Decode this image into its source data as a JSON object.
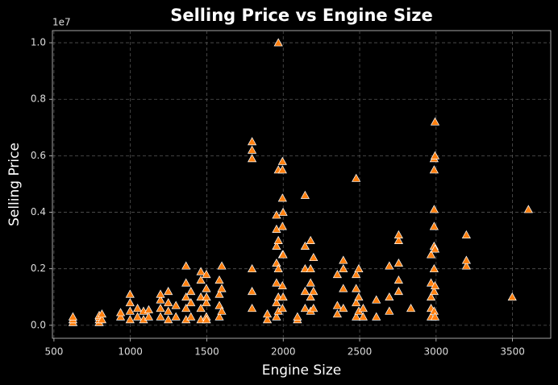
{
  "chart_data": {
    "type": "scatter",
    "title": "Selling Price vs Engine Size",
    "x_label": "Engine Size",
    "y_label": "Selling Price",
    "y_offset_label": "1e7",
    "color": "#ff7f0e",
    "marker": "triangle",
    "grid": true,
    "xlim": [
      490,
      3750
    ],
    "ylim": [
      -0.046,
      1.043
    ],
    "xticks": [
      500,
      1000,
      1500,
      2000,
      2500,
      3000,
      3500
    ],
    "yticks": [
      {
        "value": 0,
        "label": "0.0"
      },
      0.2,
      0.4,
      0.6,
      0.8,
      {
        "value": 1,
        "label": "1.0"
      }
    ],
    "x": [
      624,
      624,
      624,
      796,
      796,
      796,
      796,
      814,
      814,
      936,
      936,
      998,
      998,
      998,
      998,
      1047,
      1047,
      1086,
      1086,
      1120,
      1120,
      1197,
      1197,
      1197,
      1197,
      1248,
      1248,
      1248,
      1248,
      1298,
      1298,
      1364,
      1364,
      1364,
      1364,
      1364,
      1396,
      1396,
      1396,
      1461,
      1461,
      1461,
      1461,
      1461,
      1497,
      1497,
      1497,
      1497,
      1498,
      1498,
      1582,
      1582,
      1582,
      1582,
      1598,
      1598,
      1598,
      1796,
      1796,
      1796,
      1796,
      1796,
      1796,
      1896,
      1896,
      1956,
      1956,
      1956,
      1956,
      1956,
      1956,
      1956,
      1968,
      1968,
      1968,
      1968,
      1968,
      1968,
      1995,
      1995,
      1995,
      1995,
      1995,
      1995,
      1995,
      1999,
      1999,
      1999,
      2093,
      2093,
      2143,
      2143,
      2143,
      2143,
      2143,
      2179,
      2179,
      2179,
      2179,
      2179,
      2198,
      2198,
      2198,
      2354,
      2354,
      2354,
      2393,
      2393,
      2393,
      2393,
      2477,
      2477,
      2477,
      2477,
      2477,
      2494,
      2494,
      2494,
      2523,
      2523,
      2609,
      2609,
      2694,
      2694,
      2694,
      2755,
      2755,
      2755,
      2755,
      2755,
      2835,
      2967,
      2967,
      2967,
      2967,
      2967,
      2987,
      2987,
      2987,
      2987,
      2987,
      2987,
      2987,
      2987,
      2993,
      2993,
      2993,
      2993,
      2993,
      3198,
      3198,
      3198,
      3498,
      3604
    ],
    "values": [
      0.01,
      0.02,
      0.03,
      0.01,
      0.02,
      0.03,
      0.035,
      0.02,
      0.04,
      0.03,
      0.045,
      0.02,
      0.05,
      0.08,
      0.11,
      0.03,
      0.06,
      0.02,
      0.05,
      0.03,
      0.055,
      0.03,
      0.06,
      0.09,
      0.11,
      0.02,
      0.05,
      0.08,
      0.12,
      0.03,
      0.07,
      0.02,
      0.06,
      0.1,
      0.15,
      0.21,
      0.03,
      0.08,
      0.12,
      0.02,
      0.06,
      0.1,
      0.16,
      0.19,
      0.03,
      0.08,
      0.13,
      0.18,
      0.02,
      0.1,
      0.03,
      0.07,
      0.11,
      0.16,
      0.05,
      0.13,
      0.21,
      0.06,
      0.12,
      0.2,
      0.59,
      0.62,
      0.65,
      0.02,
      0.04,
      0.03,
      0.08,
      0.15,
      0.22,
      0.28,
      0.34,
      0.39,
      0.05,
      0.1,
      0.2,
      0.3,
      0.55,
      1.0,
      0.06,
      0.14,
      0.25,
      0.35,
      0.45,
      0.55,
      0.58,
      0.1,
      0.25,
      0.4,
      0.02,
      0.03,
      0.06,
      0.12,
      0.2,
      0.28,
      0.46,
      0.05,
      0.1,
      0.15,
      0.2,
      0.3,
      0.06,
      0.12,
      0.24,
      0.04,
      0.07,
      0.18,
      0.06,
      0.13,
      0.2,
      0.23,
      0.03,
      0.08,
      0.13,
      0.18,
      0.52,
      0.05,
      0.1,
      0.2,
      0.03,
      0.06,
      0.03,
      0.09,
      0.05,
      0.1,
      0.21,
      0.12,
      0.16,
      0.22,
      0.3,
      0.32,
      0.06,
      0.03,
      0.06,
      0.1,
      0.15,
      0.25,
      0.05,
      0.12,
      0.2,
      0.28,
      0.35,
      0.41,
      0.55,
      0.59,
      0.03,
      0.14,
      0.27,
      0.6,
      0.72,
      0.21,
      0.23,
      0.32,
      0.1,
      0.41
    ]
  }
}
